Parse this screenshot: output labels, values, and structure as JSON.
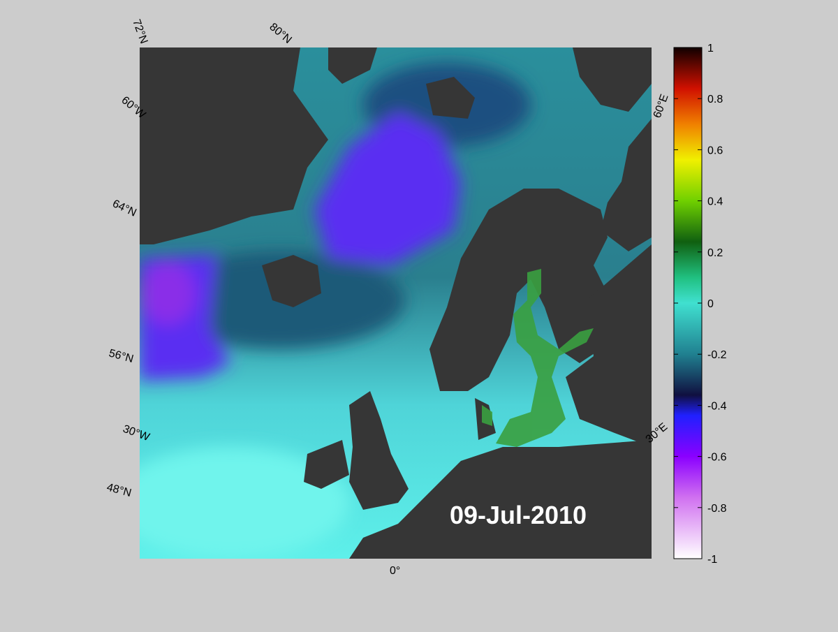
{
  "map": {
    "date_label": "09-Jul-2010",
    "graticule_labels": [
      "72°N",
      "80°N",
      "60°W",
      "64°N",
      "56°N",
      "30°W",
      "48°N",
      "0°",
      "60°E",
      "30°E"
    ]
  },
  "colorbar": {
    "lim": [
      -1,
      1
    ],
    "ticks": [
      -1,
      -0.8,
      -0.6,
      -0.4,
      -0.2,
      0,
      0.2,
      0.4,
      0.6,
      0.8,
      1
    ]
  }
}
